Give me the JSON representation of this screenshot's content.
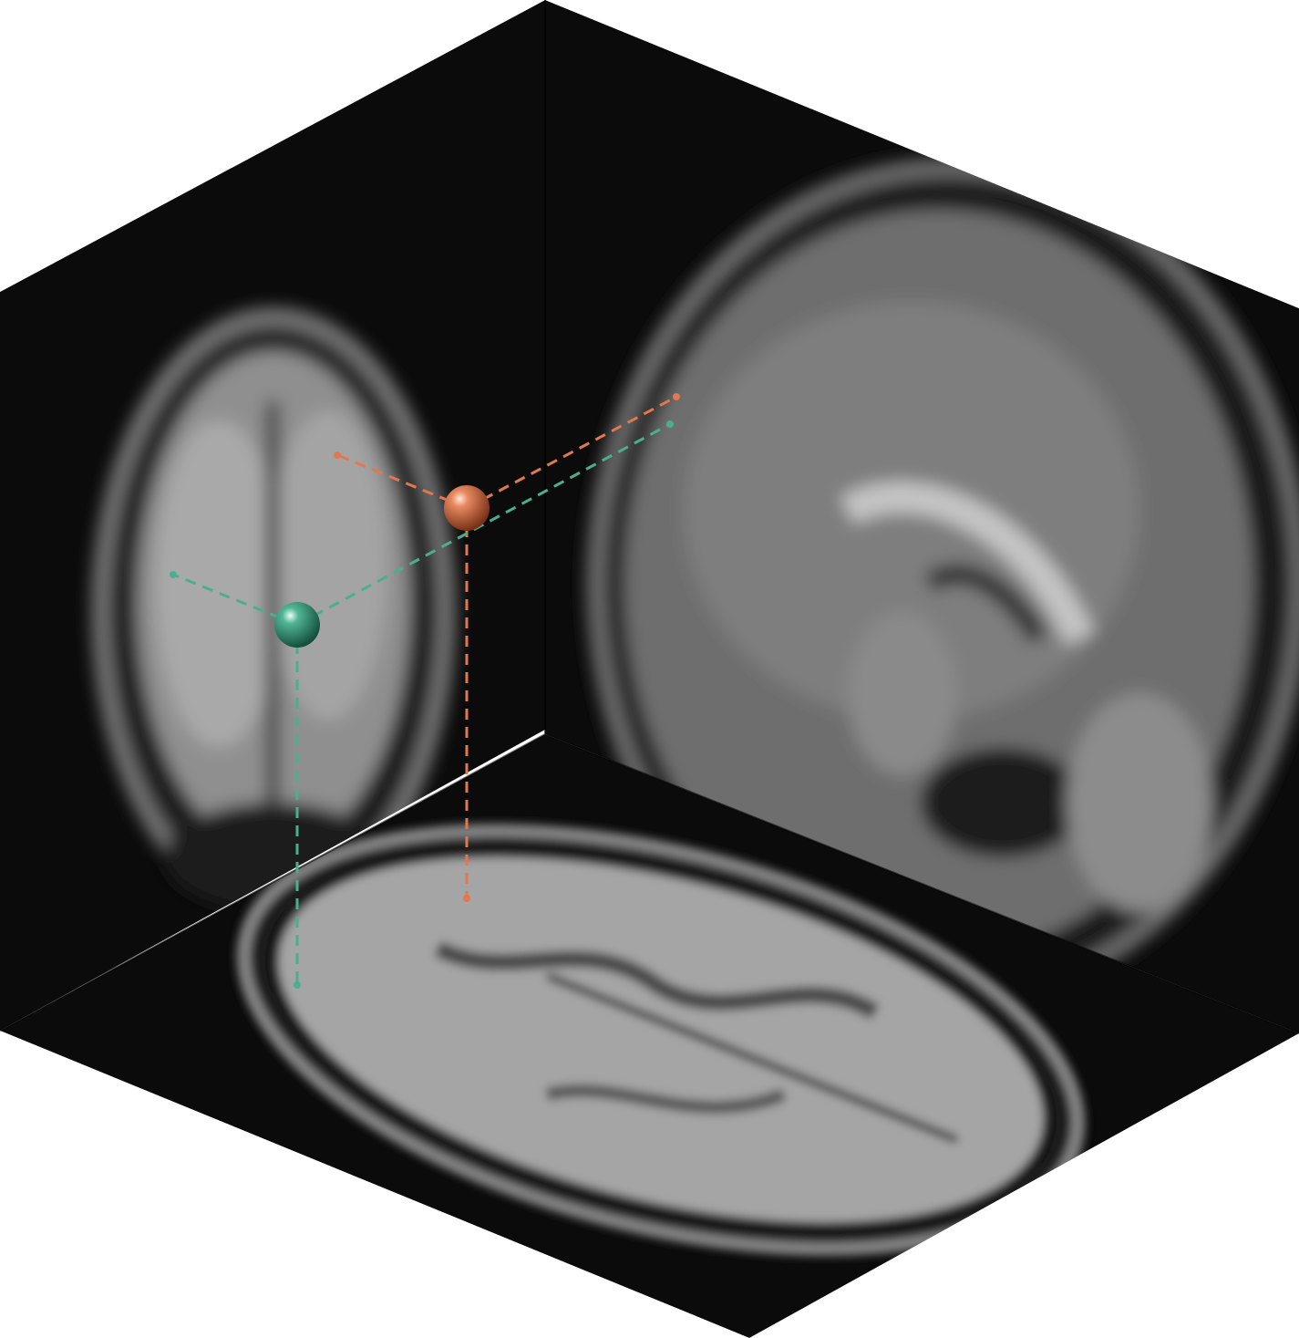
{
  "scene": {
    "views": [
      {
        "id": "coronal",
        "face": "left-wall"
      },
      {
        "id": "sagittal",
        "face": "right-wall"
      },
      {
        "id": "axial",
        "face": "floor"
      }
    ],
    "markers": [
      {
        "id": "orange",
        "color": "#e07850",
        "highlight": "#ffd0b8",
        "shade": "#8a3a1c"
      },
      {
        "id": "teal",
        "color": "#4cae90",
        "highlight": "#d6fff0",
        "shade": "#1e5e4c"
      }
    ],
    "colors": {
      "background": "#ffffff",
      "volume_dark": "#0b0b0b",
      "tissue_light": "#b8b8b8",
      "tissue_mid": "#8e8e8e",
      "skull_dark": "#1a1a1a"
    }
  }
}
